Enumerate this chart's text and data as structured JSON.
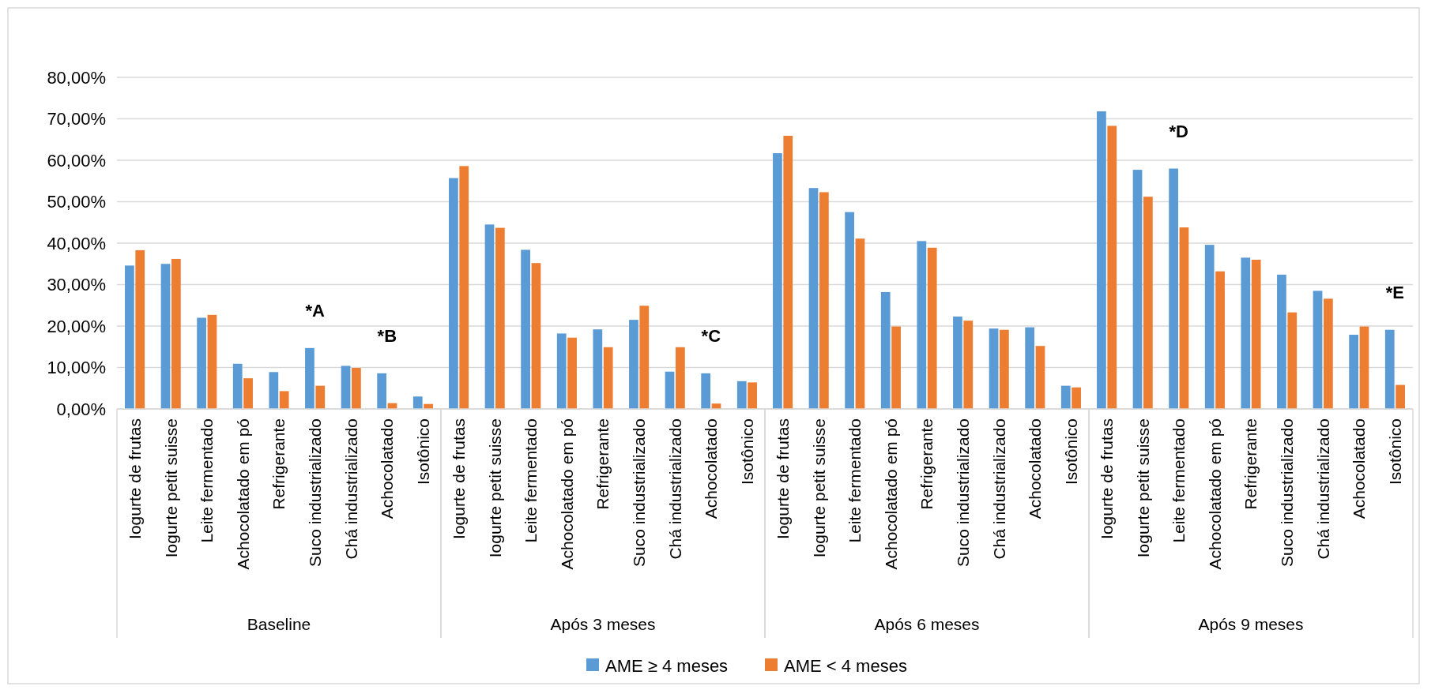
{
  "chart_data": [
    {
      "type": "bar",
      "xlabel": "Baseline",
      "categories": [
        "Iogurte de frutas",
        "Iogurte petit suisse",
        "Leite fermentado",
        "Achocolatado em pó",
        "Refrigerante",
        "Suco industrializado",
        "Chá industrializado",
        "Achocolatado",
        "Isotônico"
      ],
      "series": [
        {
          "name": "AME ≥ 4 meses",
          "color": "#5b9bd5",
          "values": [
            34.6,
            35.0,
            22.0,
            10.9,
            8.9,
            14.7,
            10.4,
            8.6,
            3.0
          ]
        },
        {
          "name": "AME < 4 meses",
          "color": "#ed7d31",
          "values": [
            38.3,
            36.2,
            22.7,
            7.4,
            4.3,
            5.6,
            9.9,
            1.4,
            1.2
          ]
        }
      ],
      "ylim": [
        0,
        80
      ],
      "yticks": [
        {
          "value": 0,
          "label": "0,00%"
        },
        {
          "value": 10,
          "label": "10,00%"
        },
        {
          "value": 20,
          "label": "20,00%"
        },
        {
          "value": 30,
          "label": "30,00%"
        },
        {
          "value": 40,
          "label": "40,00%"
        },
        {
          "value": 50,
          "label": "50,00%"
        },
        {
          "value": 60,
          "label": "60,00%"
        },
        {
          "value": 70,
          "label": "70,00%"
        },
        {
          "value": 80,
          "label": "80,00%"
        }
      ],
      "grid": "y",
      "legend": "bottom",
      "annotations": [
        {
          "text": "*A",
          "x": "Suco industrializado",
          "y": 14.7
        },
        {
          "text": "*B",
          "x": "Achocolatado",
          "y": 8.6
        }
      ]
    },
    {
      "type": "bar",
      "xlabel": "Após 3 meses",
      "categories": [
        "Iogurte de frutas",
        "Iogurte petit suisse",
        "Leite fermentado",
        "Achocolatado em pó",
        "Refrigerante",
        "Suco industrializado",
        "Chá industrializado",
        "Achocolatado",
        "Isotônico"
      ],
      "series": [
        {
          "color": "#5b9bd5",
          "values": [
            55.7,
            44.5,
            38.4,
            18.2,
            19.2,
            21.5,
            9.0,
            8.6,
            6.7
          ]
        },
        {
          "color": "#ed7d31",
          "values": [
            58.6,
            43.7,
            35.2,
            17.2,
            14.9,
            24.9,
            14.9,
            1.3,
            6.4
          ]
        }
      ],
      "ylim": [
        0,
        80
      ],
      "yticks": [
        0,
        10,
        20,
        30,
        40,
        50,
        60,
        70,
        80
      ],
      "grid": "y",
      "tick_labels": "x",
      "annotations": [
        {
          "text": "*C",
          "x": "Achocolatado",
          "y": 8.6
        }
      ]
    },
    {
      "type": "bar",
      "xlabel": "Após 6 meses",
      "categories": [
        "Iogurte de frutas",
        "Iogurte petit suisse",
        "Leite fermentado",
        "Achocolatado em pó",
        "Refrigerante",
        "Suco industrializado",
        "Chá industrializado",
        "Achocolatado",
        "Isotônico"
      ],
      "series": [
        {
          "color": "#5b9bd5",
          "values": [
            61.7,
            53.3,
            47.5,
            28.2,
            40.5,
            22.3,
            19.4,
            19.7,
            5.6
          ]
        },
        {
          "color": "#ed7d31",
          "values": [
            65.9,
            52.3,
            41.1,
            19.9,
            38.9,
            21.3,
            19.1,
            15.2,
            5.2
          ]
        }
      ],
      "ylim": [
        0,
        80
      ],
      "yticks": [
        0,
        10,
        20,
        30,
        40,
        50,
        60,
        70,
        80
      ],
      "grid": "y",
      "tick_labels": "x"
    },
    {
      "type": "bar",
      "xlabel": "Após 9 meses",
      "categories": [
        "Iogurte de frutas",
        "Iogurte petit suisse",
        "Leite fermentado",
        "Achocolatado em pó",
        "Refrigerante",
        "Suco industrializado",
        "Chá industrializado",
        "Achocolatado",
        "Isotônico"
      ],
      "series": [
        {
          "color": "#5b9bd5",
          "values": [
            71.8,
            57.7,
            58.0,
            39.6,
            36.5,
            32.4,
            28.5,
            17.9,
            19.1
          ]
        },
        {
          "color": "#ed7d31",
          "values": [
            68.3,
            51.2,
            43.8,
            33.2,
            36.0,
            23.3,
            26.6,
            19.9,
            5.8
          ]
        }
      ],
      "ylim": [
        0,
        80
      ],
      "yticks": [
        0,
        10,
        20,
        30,
        40,
        50,
        60,
        70,
        80
      ],
      "grid": "y",
      "tick_labels": "x",
      "annotations": [
        {
          "text": "*D",
          "x": "Leite fermentado",
          "y": 58.0
        },
        {
          "text": "*E",
          "x": "Isotônico",
          "y": 19.1
        }
      ]
    }
  ]
}
